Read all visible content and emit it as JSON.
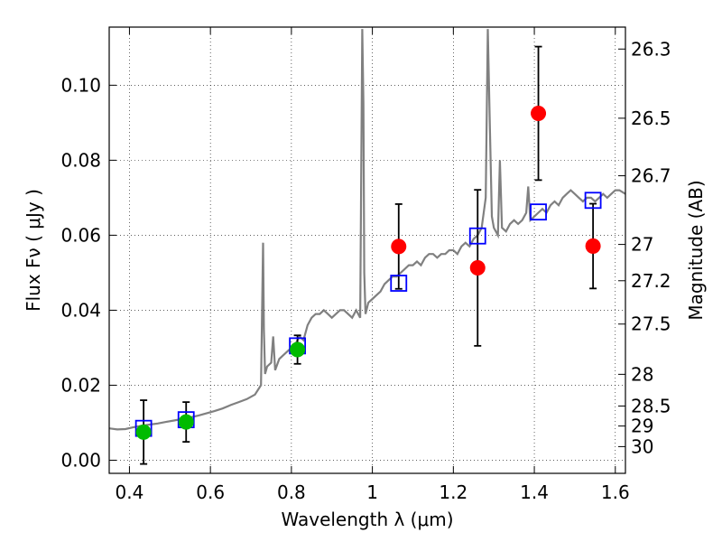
{
  "chart_data": {
    "type": "scatter",
    "xlabel": "Wavelength  λ (μm)",
    "ylabel": "Flux  Fν  ( μJy )",
    "ylabel_right": "Magnitude (AB)",
    "xlim": [
      0.35,
      1.625
    ],
    "ylim": [
      -0.0035,
      0.1155
    ],
    "x_ticks": [
      0.4,
      0.6,
      0.8,
      1.0,
      1.2,
      1.4,
      1.6
    ],
    "x_tick_labels": [
      "0.4",
      "0.6",
      "0.8",
      "1",
      "1.2",
      "1.4",
      "1.6"
    ],
    "y_ticks": [
      0.0,
      0.02,
      0.04,
      0.06,
      0.08,
      0.1
    ],
    "y_tick_labels": [
      "0.00",
      "0.02",
      "0.04",
      "0.06",
      "0.08",
      "0.10"
    ],
    "right_ticks": [
      {
        "mag": 26.3,
        "label": "26.3"
      },
      {
        "mag": 26.5,
        "label": "26.5"
      },
      {
        "mag": 26.7,
        "label": "26.7"
      },
      {
        "mag": 27.0,
        "label": "27"
      },
      {
        "mag": 27.2,
        "label": "27.2"
      },
      {
        "mag": 27.5,
        "label": "27.5"
      },
      {
        "mag": 28.0,
        "label": "28"
      },
      {
        "mag": 28.5,
        "label": "28.5"
      },
      {
        "mag": 29.0,
        "label": "29"
      },
      {
        "mag": 30.0,
        "label": "30"
      }
    ],
    "grid": true,
    "colors": {
      "model_line": "#808080",
      "detection": "#00bb00",
      "nondetection": "#ff0000",
      "model_photometry": "#0000ff",
      "errorbar": "#000000"
    },
    "model_spectrum": {
      "x": [
        0.35,
        0.37,
        0.39,
        0.41,
        0.43,
        0.45,
        0.47,
        0.49,
        0.51,
        0.53,
        0.55,
        0.57,
        0.59,
        0.61,
        0.63,
        0.65,
        0.67,
        0.69,
        0.71,
        0.725,
        0.73,
        0.732,
        0.735,
        0.74,
        0.75,
        0.755,
        0.76,
        0.77,
        0.78,
        0.79,
        0.8,
        0.81,
        0.82,
        0.83,
        0.84,
        0.85,
        0.86,
        0.87,
        0.88,
        0.89,
        0.9,
        0.91,
        0.92,
        0.93,
        0.94,
        0.95,
        0.96,
        0.97,
        0.975,
        0.978,
        0.98,
        0.983,
        0.99,
        1.0,
        1.01,
        1.02,
        1.03,
        1.04,
        1.05,
        1.06,
        1.07,
        1.08,
        1.09,
        1.1,
        1.11,
        1.12,
        1.13,
        1.14,
        1.15,
        1.16,
        1.17,
        1.18,
        1.19,
        1.2,
        1.21,
        1.22,
        1.23,
        1.24,
        1.25,
        1.26,
        1.27,
        1.28,
        1.285,
        1.29,
        1.295,
        1.3,
        1.31,
        1.315,
        1.32,
        1.33,
        1.34,
        1.35,
        1.36,
        1.37,
        1.38,
        1.385,
        1.39,
        1.4,
        1.41,
        1.42,
        1.43,
        1.44,
        1.45,
        1.46,
        1.47,
        1.48,
        1.49,
        1.5,
        1.51,
        1.52,
        1.53,
        1.54,
        1.55,
        1.56,
        1.57,
        1.58,
        1.59,
        1.6,
        1.61,
        1.625
      ],
      "y": [
        0.0085,
        0.0082,
        0.0083,
        0.0088,
        0.0092,
        0.0095,
        0.0098,
        0.0102,
        0.0106,
        0.011,
        0.0114,
        0.0119,
        0.0125,
        0.0131,
        0.0138,
        0.0147,
        0.0155,
        0.0163,
        0.0175,
        0.02,
        0.058,
        0.035,
        0.023,
        0.025,
        0.026,
        0.033,
        0.024,
        0.027,
        0.028,
        0.029,
        0.03,
        0.031,
        0.033,
        0.032,
        0.036,
        0.038,
        0.039,
        0.039,
        0.04,
        0.039,
        0.038,
        0.039,
        0.04,
        0.04,
        0.039,
        0.038,
        0.04,
        0.038,
        0.115,
        0.095,
        0.05,
        0.039,
        0.042,
        0.043,
        0.044,
        0.045,
        0.047,
        0.048,
        0.049,
        0.049,
        0.05,
        0.051,
        0.052,
        0.052,
        0.053,
        0.052,
        0.054,
        0.055,
        0.055,
        0.054,
        0.055,
        0.055,
        0.056,
        0.056,
        0.055,
        0.057,
        0.058,
        0.057,
        0.059,
        0.06,
        0.062,
        0.07,
        0.115,
        0.09,
        0.065,
        0.062,
        0.06,
        0.08,
        0.062,
        0.061,
        0.063,
        0.064,
        0.063,
        0.064,
        0.066,
        0.073,
        0.064,
        0.065,
        0.066,
        0.067,
        0.066,
        0.068,
        0.069,
        0.068,
        0.07,
        0.071,
        0.072,
        0.071,
        0.07,
        0.069,
        0.07,
        0.07,
        0.069,
        0.07,
        0.071,
        0.07,
        0.071,
        0.072,
        0.072,
        0.071
      ]
    },
    "series": [
      {
        "kind": "detection",
        "points": [
          {
            "x": 0.435,
            "y": 0.0075,
            "err": 0.0085
          },
          {
            "x": 0.54,
            "y": 0.0102,
            "err": 0.0053
          },
          {
            "x": 0.815,
            "y": 0.0295,
            "err": 0.0038
          }
        ]
      },
      {
        "kind": "nondetection",
        "points": [
          {
            "x": 1.065,
            "y": 0.057,
            "err": 0.0113
          },
          {
            "x": 1.26,
            "y": 0.0513,
            "err": 0.0208
          },
          {
            "x": 1.41,
            "y": 0.0925,
            "err": 0.0178
          },
          {
            "x": 1.545,
            "y": 0.0571,
            "err": 0.0113
          }
        ]
      },
      {
        "kind": "model_photometry",
        "points": [
          {
            "x": 0.435,
            "y": 0.0085
          },
          {
            "x": 0.54,
            "y": 0.0108
          },
          {
            "x": 0.815,
            "y": 0.0305
          },
          {
            "x": 1.065,
            "y": 0.0472
          },
          {
            "x": 1.26,
            "y": 0.0598
          },
          {
            "x": 1.41,
            "y": 0.0662
          },
          {
            "x": 1.545,
            "y": 0.0693
          }
        ]
      }
    ]
  }
}
